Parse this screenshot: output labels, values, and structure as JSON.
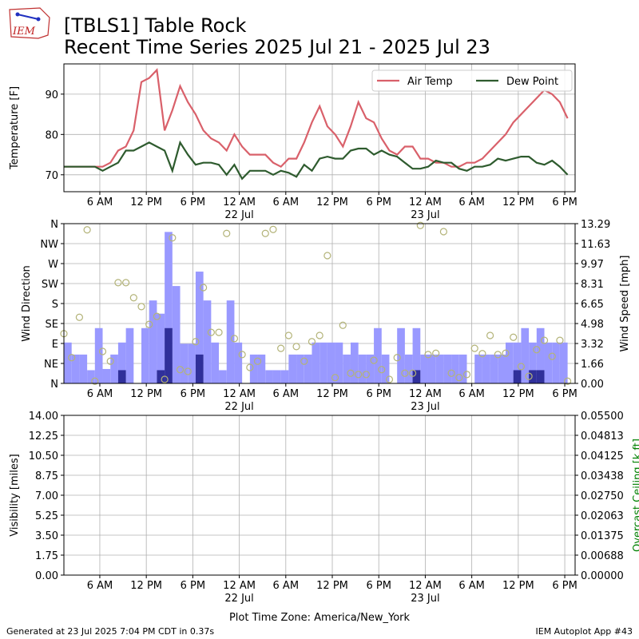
{
  "logo_text": "IEM",
  "title": "[TBLS1] Table Rock",
  "subtitle": "Recent Time Series 2025 Jul 21 - 2025 Jul 23",
  "footer_left": "Generated at 23 Jul 2025 7:04 PM CDT in 0.37s",
  "footer_right": "IEM Autoplot App #43",
  "chart_data": [
    {
      "type": "line",
      "ylabel": "Temperature [F]",
      "grid": true,
      "legend": "upper right",
      "xlim": [
        "2025-07-21 01:22",
        "2025-07-23 19:20"
      ],
      "xticks": [
        {
          "value": "2025-07-21 06:00",
          "label": "6 AM"
        },
        {
          "value": "2025-07-21 12:00",
          "label": "12 PM"
        },
        {
          "value": "2025-07-21 18:00",
          "label": "6 PM"
        },
        {
          "value": "2025-07-22 00:00",
          "label": "12 AM"
        },
        {
          "value": "2025-07-22 06:00",
          "label": "6 AM"
        },
        {
          "value": "2025-07-22 12:00",
          "label": "12 PM"
        },
        {
          "value": "2025-07-22 18:00",
          "label": "6 PM"
        },
        {
          "value": "2025-07-23 00:00",
          "label": "12 AM"
        },
        {
          "value": "2025-07-23 06:00",
          "label": "6 AM"
        },
        {
          "value": "2025-07-23 12:00",
          "label": "12 PM"
        },
        {
          "value": "2025-07-23 18:00",
          "label": "6 PM"
        }
      ],
      "xdates": [
        {
          "value": "2025-07-22 00:00",
          "label": "22 Jul"
        },
        {
          "value": "2025-07-23 00:00",
          "label": "23 Jul"
        }
      ],
      "ylim": [
        65.8,
        97.5
      ],
      "yticks": [
        70,
        80,
        90
      ],
      "x": [
        "2025-07-21 01:22",
        "2025-07-21 02:22",
        "2025-07-21 03:22",
        "2025-07-21 04:22",
        "2025-07-21 05:22",
        "2025-07-21 06:22",
        "2025-07-21 07:22",
        "2025-07-21 08:22",
        "2025-07-21 09:22",
        "2025-07-21 10:22",
        "2025-07-21 11:22",
        "2025-07-21 12:22",
        "2025-07-21 13:22",
        "2025-07-21 14:22",
        "2025-07-21 15:22",
        "2025-07-21 16:22",
        "2025-07-21 17:22",
        "2025-07-21 18:22",
        "2025-07-21 19:22",
        "2025-07-21 20:22",
        "2025-07-21 21:22",
        "2025-07-21 22:22",
        "2025-07-21 23:22",
        "2025-07-22 00:22",
        "2025-07-22 01:22",
        "2025-07-22 02:22",
        "2025-07-22 03:22",
        "2025-07-22 04:22",
        "2025-07-22 05:22",
        "2025-07-22 06:22",
        "2025-07-22 07:22",
        "2025-07-22 08:22",
        "2025-07-22 09:22",
        "2025-07-22 10:22",
        "2025-07-22 11:22",
        "2025-07-22 12:22",
        "2025-07-22 13:22",
        "2025-07-22 14:22",
        "2025-07-22 15:22",
        "2025-07-22 16:22",
        "2025-07-22 17:22",
        "2025-07-22 18:22",
        "2025-07-22 19:22",
        "2025-07-22 20:22",
        "2025-07-22 21:22",
        "2025-07-22 22:22",
        "2025-07-22 23:22",
        "2025-07-23 00:22",
        "2025-07-23 01:22",
        "2025-07-23 02:22",
        "2025-07-23 03:22",
        "2025-07-23 04:22",
        "2025-07-23 05:22",
        "2025-07-23 06:22",
        "2025-07-23 07:22",
        "2025-07-23 08:22",
        "2025-07-23 09:22",
        "2025-07-23 10:22",
        "2025-07-23 11:22",
        "2025-07-23 12:22",
        "2025-07-23 13:22",
        "2025-07-23 14:22",
        "2025-07-23 15:22",
        "2025-07-23 16:22",
        "2025-07-23 17:22",
        "2025-07-23 18:22"
      ],
      "series": [
        {
          "name": "Air Temp",
          "type": "line",
          "color": "#d9606a",
          "values": [
            72,
            72,
            72,
            72,
            72,
            72,
            73,
            76,
            77,
            81,
            93,
            94,
            96,
            81,
            86,
            92,
            88,
            85,
            81,
            79,
            78,
            76,
            80,
            77,
            75,
            75,
            75,
            73,
            72,
            74,
            74,
            78,
            83,
            87,
            82,
            80,
            77,
            82,
            88,
            84,
            83,
            79,
            76,
            75,
            77,
            77,
            74,
            74,
            73,
            73,
            72,
            72,
            73,
            73,
            74,
            76,
            78,
            80,
            83,
            85,
            87,
            89,
            91,
            90,
            88,
            84
          ]
        },
        {
          "name": "Dew Point",
          "type": "line",
          "color": "#2e5b2e",
          "values": [
            72,
            72,
            72,
            72,
            72,
            71,
            72,
            73,
            76,
            76,
            77,
            78,
            77,
            76,
            71,
            78,
            75,
            72.5,
            73,
            73,
            72.5,
            70,
            72.5,
            69,
            71,
            71,
            71,
            70,
            71,
            70.5,
            69.5,
            72.5,
            71,
            74,
            74.5,
            74,
            74,
            76,
            76.5,
            76.5,
            75,
            76,
            75,
            74.5,
            73,
            71.5,
            71.5,
            72,
            73.5,
            73,
            73,
            71.5,
            71,
            72,
            72,
            72.5,
            74,
            73.5,
            74,
            74.5,
            74.5,
            73,
            72.5,
            73.5,
            72,
            70
          ]
        }
      ]
    },
    {
      "type": "combo",
      "ylabel": "Wind Direction",
      "y2label": "Wind Speed [mph]",
      "grid": true,
      "xlim": [
        "2025-07-21 01:22",
        "2025-07-23 19:20"
      ],
      "xticks": [
        {
          "value": "2025-07-21 06:00",
          "label": "6 AM"
        },
        {
          "value": "2025-07-21 12:00",
          "label": "12 PM"
        },
        {
          "value": "2025-07-21 18:00",
          "label": "6 PM"
        },
        {
          "value": "2025-07-22 00:00",
          "label": "12 AM"
        },
        {
          "value": "2025-07-22 06:00",
          "label": "6 AM"
        },
        {
          "value": "2025-07-22 12:00",
          "label": "12 PM"
        },
        {
          "value": "2025-07-22 18:00",
          "label": "6 PM"
        },
        {
          "value": "2025-07-23 00:00",
          "label": "12 AM"
        },
        {
          "value": "2025-07-23 06:00",
          "label": "6 AM"
        },
        {
          "value": "2025-07-23 12:00",
          "label": "12 PM"
        },
        {
          "value": "2025-07-23 18:00",
          "label": "6 PM"
        }
      ],
      "xdates": [
        {
          "value": "2025-07-22 00:00",
          "label": "22 Jul"
        },
        {
          "value": "2025-07-23 00:00",
          "label": "23 Jul"
        }
      ],
      "ylim": [
        0,
        360
      ],
      "yticks": [
        {
          "value": 0,
          "label": "N"
        },
        {
          "value": 45,
          "label": "NE"
        },
        {
          "value": 90,
          "label": "E"
        },
        {
          "value": 135,
          "label": "SE"
        },
        {
          "value": 180,
          "label": "S"
        },
        {
          "value": 225,
          "label": "SW"
        },
        {
          "value": 270,
          "label": "W"
        },
        {
          "value": 315,
          "label": "NW"
        },
        {
          "value": 360,
          "label": "N"
        }
      ],
      "y2lim": [
        0,
        13.29
      ],
      "y2ticks": [
        {
          "value": 0,
          "label": "0.00"
        },
        {
          "value": 1.66,
          "label": "1.66"
        },
        {
          "value": 3.32,
          "label": "3.32"
        },
        {
          "value": 4.98,
          "label": "4.98"
        },
        {
          "value": 6.65,
          "label": "6.65"
        },
        {
          "value": 8.31,
          "label": "8.31"
        },
        {
          "value": 9.97,
          "label": "9.97"
        },
        {
          "value": 11.63,
          "label": "11.63"
        },
        {
          "value": 13.29,
          "label": "13.29"
        }
      ],
      "x": [
        "2025-07-21 01:22",
        "2025-07-21 02:22",
        "2025-07-21 03:22",
        "2025-07-21 04:22",
        "2025-07-21 05:22",
        "2025-07-21 06:22",
        "2025-07-21 07:22",
        "2025-07-21 08:22",
        "2025-07-21 09:22",
        "2025-07-21 10:22",
        "2025-07-21 11:22",
        "2025-07-21 12:22",
        "2025-07-21 13:22",
        "2025-07-21 14:22",
        "2025-07-21 15:22",
        "2025-07-21 16:22",
        "2025-07-21 17:22",
        "2025-07-21 18:22",
        "2025-07-21 19:22",
        "2025-07-21 20:22",
        "2025-07-21 21:22",
        "2025-07-21 22:22",
        "2025-07-21 23:22",
        "2025-07-22 00:22",
        "2025-07-22 01:22",
        "2025-07-22 02:22",
        "2025-07-22 03:22",
        "2025-07-22 04:22",
        "2025-07-22 05:22",
        "2025-07-22 06:22",
        "2025-07-22 07:22",
        "2025-07-22 08:22",
        "2025-07-22 09:22",
        "2025-07-22 10:22",
        "2025-07-22 11:22",
        "2025-07-22 12:22",
        "2025-07-22 13:22",
        "2025-07-22 14:22",
        "2025-07-22 15:22",
        "2025-07-22 16:22",
        "2025-07-22 17:22",
        "2025-07-22 18:22",
        "2025-07-22 19:22",
        "2025-07-22 20:22",
        "2025-07-22 21:22",
        "2025-07-22 22:22",
        "2025-07-22 23:22",
        "2025-07-23 00:22",
        "2025-07-23 01:22",
        "2025-07-23 02:22",
        "2025-07-23 03:22",
        "2025-07-23 04:22",
        "2025-07-23 05:22",
        "2025-07-23 06:22",
        "2025-07-23 07:22",
        "2025-07-23 08:22",
        "2025-07-23 09:22",
        "2025-07-23 10:22",
        "2025-07-23 11:22",
        "2025-07-23 12:22",
        "2025-07-23 13:22",
        "2025-07-23 14:22",
        "2025-07-23 15:22",
        "2025-07-23 16:22",
        "2025-07-23 17:22",
        "2025-07-23 18:22"
      ],
      "series": [
        {
          "type": "bar",
          "axis": "y2",
          "color": "#9999ff",
          "values": [
            3.4,
            2.4,
            2.4,
            1.1,
            4.6,
            1.2,
            2.4,
            3.4,
            4.6,
            0,
            4.6,
            6.9,
            5.8,
            12.6,
            8.1,
            3.3,
            3.3,
            9.3,
            6.9,
            3.4,
            1.1,
            6.9,
            3.4,
            0,
            2.4,
            2.4,
            1.1,
            1.1,
            1.1,
            2.4,
            2.4,
            2.4,
            3.4,
            3.4,
            3.4,
            3.4,
            2.4,
            3.4,
            2.4,
            2.4,
            4.6,
            2.4,
            0,
            4.6,
            2.4,
            4.6,
            2.4,
            2.4,
            2.4,
            2.4,
            2.4,
            2.4,
            0,
            2.4,
            2.4,
            2.4,
            2.4,
            3.4,
            3.4,
            4.6,
            3.4,
            4.6,
            3.4,
            3.4,
            3.4,
            0
          ]
        },
        {
          "type": "bar",
          "axis": "y2",
          "color": "#30309a",
          "values": [
            0,
            0,
            0,
            0,
            0,
            0,
            0,
            1.1,
            0,
            0,
            0,
            0,
            1.1,
            4.6,
            0,
            0,
            0,
            2.4,
            0,
            0,
            0,
            0,
            0,
            0,
            0,
            0,
            0,
            0,
            0,
            0,
            0,
            0,
            0,
            0,
            0,
            0,
            0,
            0,
            0,
            0,
            0,
            0,
            0,
            0,
            0,
            1.1,
            0,
            0,
            0,
            0,
            0,
            0,
            0,
            0,
            0,
            0,
            0,
            0,
            1.1,
            0,
            1.1,
            1.1,
            0,
            0,
            0,
            0
          ]
        },
        {
          "type": "scatter",
          "color": "#b3b378",
          "values": [
            112,
            58,
            149,
            346,
            5,
            72,
            50,
            227,
            227,
            193,
            173,
            133,
            151,
            9,
            328,
            31,
            27,
            94,
            216,
            115,
            115,
            338,
            101,
            65,
            36,
            50,
            338,
            347,
            79,
            108,
            83,
            50,
            94,
            108,
            288,
            13,
            131,
            23,
            20,
            20,
            52,
            31,
            9,
            58,
            23,
            23,
            356,
            65,
            68,
            342,
            23,
            13,
            20,
            79,
            67,
            108,
            65,
            68,
            104,
            38,
            16,
            76,
            97,
            61,
            97,
            5
          ]
        }
      ]
    },
    {
      "type": "line",
      "ylabel": "Visibility [miles]",
      "y2label": "Overcast Ceiling [k ft]",
      "y2label_color": "#008000",
      "xlabel": "Plot Time Zone: America/New_York",
      "grid": true,
      "xlim": [
        "2025-07-21 01:22",
        "2025-07-23 19:20"
      ],
      "xticks": [
        {
          "value": "2025-07-21 06:00",
          "label": "6 AM"
        },
        {
          "value": "2025-07-21 12:00",
          "label": "12 PM"
        },
        {
          "value": "2025-07-21 18:00",
          "label": "6 PM"
        },
        {
          "value": "2025-07-22 00:00",
          "label": "12 AM"
        },
        {
          "value": "2025-07-22 06:00",
          "label": "6 AM"
        },
        {
          "value": "2025-07-22 12:00",
          "label": "12 PM"
        },
        {
          "value": "2025-07-22 18:00",
          "label": "6 PM"
        },
        {
          "value": "2025-07-23 00:00",
          "label": "12 AM"
        },
        {
          "value": "2025-07-23 06:00",
          "label": "6 AM"
        },
        {
          "value": "2025-07-23 12:00",
          "label": "12 PM"
        },
        {
          "value": "2025-07-23 18:00",
          "label": "6 PM"
        }
      ],
      "xdates": [
        {
          "value": "2025-07-22 00:00",
          "label": "22 Jul"
        },
        {
          "value": "2025-07-23 00:00",
          "label": "23 Jul"
        }
      ],
      "ylim": [
        0,
        14
      ],
      "yticks": [
        {
          "value": 0,
          "label": "0.00"
        },
        {
          "value": 1.75,
          "label": "1.75"
        },
        {
          "value": 3.5,
          "label": "3.50"
        },
        {
          "value": 5.25,
          "label": "5.25"
        },
        {
          "value": 7,
          "label": "7.00"
        },
        {
          "value": 8.75,
          "label": "8.75"
        },
        {
          "value": 10.5,
          "label": "10.50"
        },
        {
          "value": 12.25,
          "label": "12.25"
        },
        {
          "value": 14,
          "label": "14.00"
        }
      ],
      "y2lim": [
        0,
        0.055
      ],
      "y2ticks": [
        {
          "value": 0,
          "label": "0.00000"
        },
        {
          "value": 0.006875,
          "label": "0.00688"
        },
        {
          "value": 0.01375,
          "label": "0.01375"
        },
        {
          "value": 0.020625,
          "label": "0.02063"
        },
        {
          "value": 0.0275,
          "label": "0.02750"
        },
        {
          "value": 0.034375,
          "label": "0.03438"
        },
        {
          "value": 0.04125,
          "label": "0.04125"
        },
        {
          "value": 0.048125,
          "label": "0.04813"
        },
        {
          "value": 0.055,
          "label": "0.05500"
        }
      ],
      "series": []
    }
  ]
}
